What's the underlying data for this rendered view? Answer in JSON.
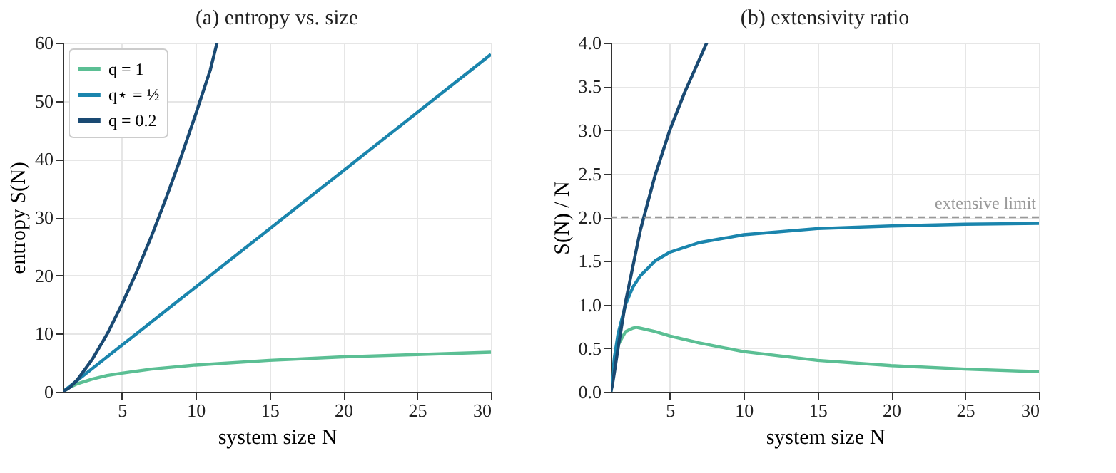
{
  "chart_data": [
    {
      "type": "line",
      "title": "(a) entropy vs. size",
      "xlabel": "system size N",
      "ylabel": "entropy S(N)",
      "xlim": [
        1,
        30
      ],
      "xticks": [
        5,
        10,
        15,
        20,
        25,
        30
      ],
      "ylim": [
        0,
        60
      ],
      "yticks": [
        0,
        10,
        20,
        30,
        40,
        50,
        60
      ],
      "grid": true,
      "legend": "top left",
      "line_style": "solid",
      "marker": "none",
      "series": [
        {
          "name": "q = 1",
          "color": "#5bbf94",
          "x": [
            1,
            1.5,
            2,
            2.5,
            3,
            4,
            5,
            7,
            10,
            15,
            20,
            25,
            30
          ],
          "values": [
            0,
            0.8,
            1.4,
            1.8,
            2.2,
            2.8,
            3.2,
            3.9,
            4.6,
            5.4,
            6.0,
            6.4,
            6.8
          ]
        },
        {
          "name": "q⋆ = ½",
          "color": "#1a85ad",
          "x": [
            1,
            10,
            20,
            30
          ],
          "values": [
            0,
            18,
            38,
            58
          ]
        },
        {
          "name": "q = 0.2",
          "color": "#1a4a73",
          "x": [
            1,
            1.5,
            2,
            3,
            4,
            5,
            6,
            7,
            8,
            9,
            10,
            11,
            11.45
          ],
          "values": [
            0,
            0.8,
            2.1,
            5.6,
            9.9,
            15,
            20.6,
            26.7,
            33.3,
            40.3,
            47.7,
            55.4,
            60
          ]
        }
      ]
    },
    {
      "type": "line",
      "title": "(b) extensivity ratio",
      "xlabel": "system size N",
      "ylabel": "S(N) / N",
      "xlim": [
        1,
        30
      ],
      "xticks": [
        5,
        10,
        15,
        20,
        25,
        30
      ],
      "ylim": [
        0,
        4
      ],
      "yticks": [
        {
          "value": 0,
          "label": "0.0"
        },
        0.5,
        {
          "value": 1,
          "label": "1.0"
        },
        1.5,
        {
          "value": 2,
          "label": "2.0"
        },
        2.5,
        {
          "value": 3,
          "label": "3.0"
        },
        3.5,
        {
          "value": 4,
          "label": "4.0"
        }
      ],
      "grid": true,
      "line_style": "solid",
      "marker": "none",
      "ref_lines": [
        {
          "axis": "y",
          "value": 2,
          "label": "extensive limit",
          "color": "#999999",
          "line_style": "dashed"
        }
      ],
      "series": [
        {
          "color": "#5bbf94",
          "x": [
            1,
            1.5,
            2,
            2.5,
            2.718,
            3,
            4,
            5,
            7,
            10,
            15,
            20,
            25,
            30
          ],
          "values": [
            0,
            0.54,
            0.69,
            0.73,
            0.74,
            0.73,
            0.69,
            0.64,
            0.56,
            0.46,
            0.36,
            0.3,
            0.26,
            0.23
          ]
        },
        {
          "color": "#1a85ad",
          "x": [
            1,
            1.25,
            1.5,
            2,
            2.5,
            3,
            4,
            5,
            7,
            10,
            15,
            20,
            25,
            30
          ],
          "values": [
            0,
            0.4,
            0.67,
            1.0,
            1.2,
            1.33,
            1.5,
            1.6,
            1.71,
            1.8,
            1.87,
            1.9,
            1.92,
            1.93
          ]
        },
        {
          "color": "#1a4a73",
          "x": [
            1,
            1.1,
            1.25,
            1.5,
            2,
            3,
            4,
            5,
            6,
            7,
            7.5
          ],
          "values": [
            0,
            0.07,
            0.23,
            0.51,
            1.03,
            1.85,
            2.48,
            3.0,
            3.43,
            3.81,
            4.0
          ]
        }
      ]
    }
  ]
}
